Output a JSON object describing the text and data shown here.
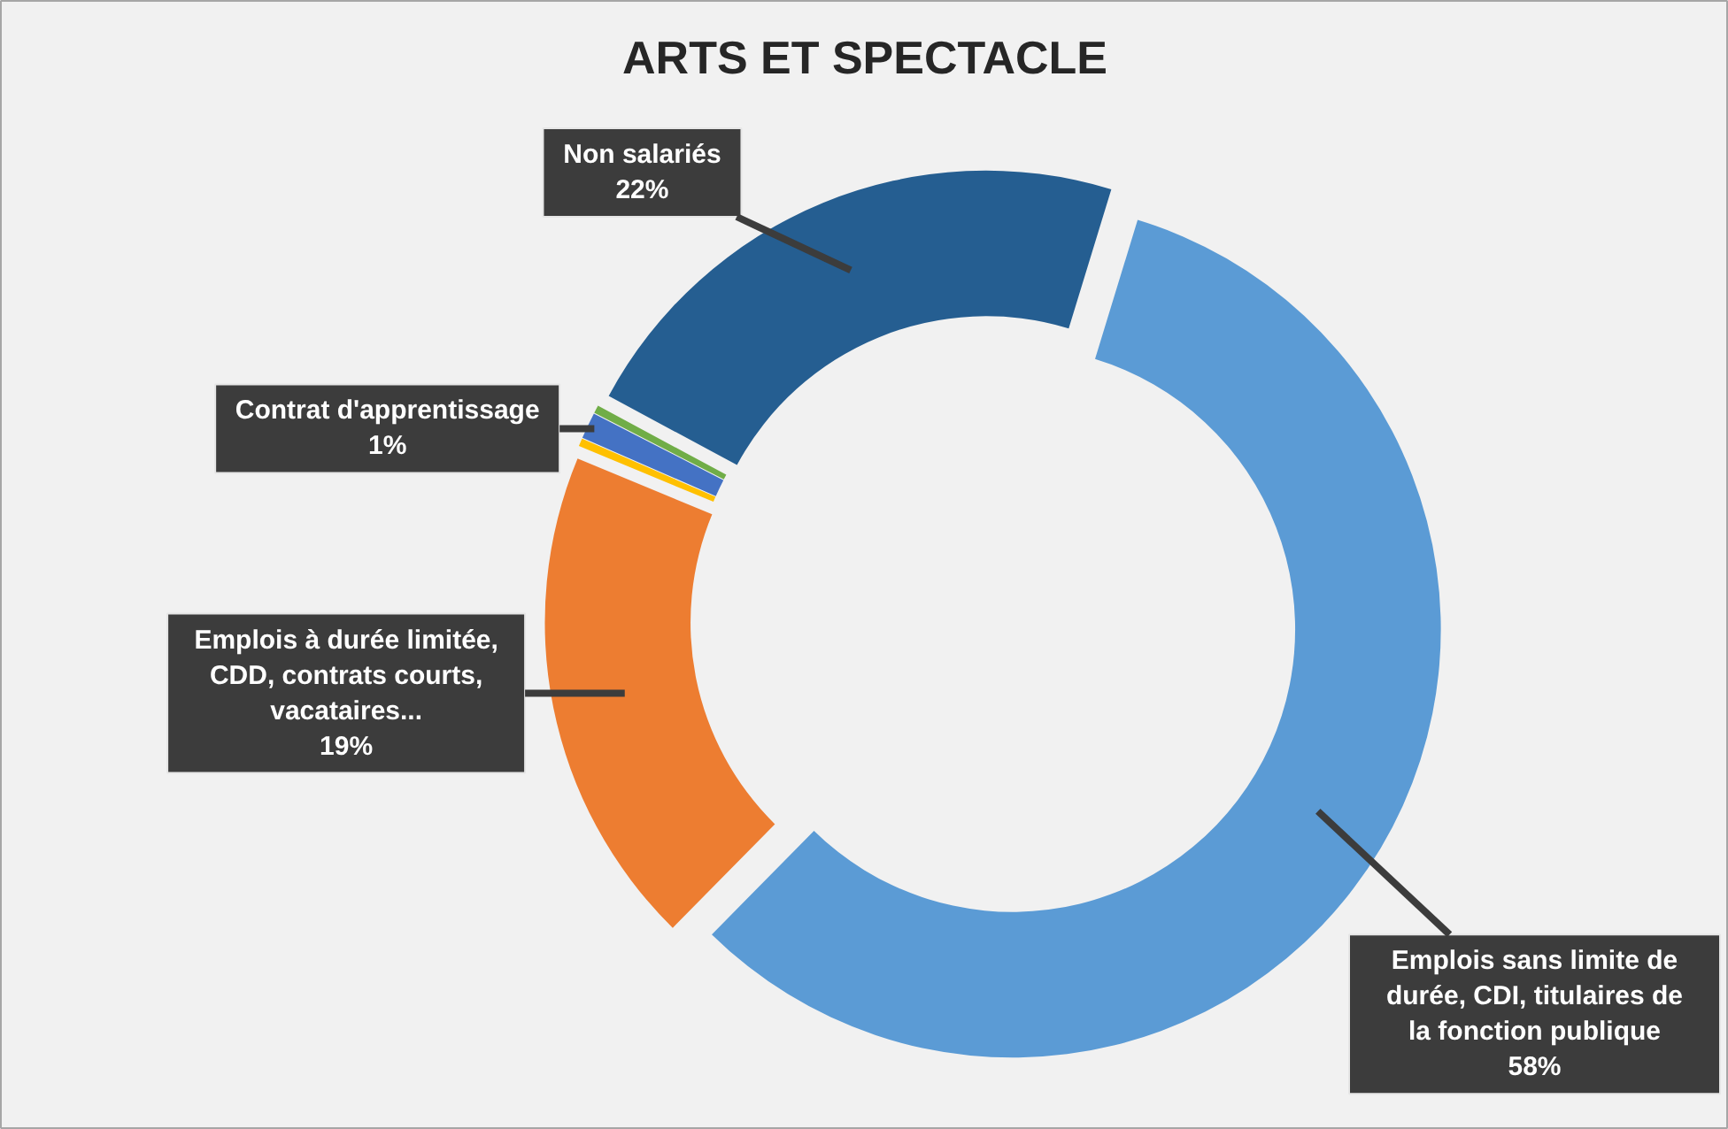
{
  "chart_data": {
    "type": "donut",
    "title": "ARTS ET SPECTACLE",
    "categories": [
      "Emplois sans limite de durée, CDI, titulaires de la fonction publique",
      "Emplois à durée limitée, CDD, contrats courts, vacataires...",
      null,
      "Contrat d'apprentissage",
      null,
      "Non salariés"
    ],
    "values": [
      58,
      19,
      0.3,
      1,
      0.3,
      22
    ],
    "colors": [
      "#5b9bd5",
      "#ed7d31",
      "#ffc000",
      "#4472c4",
      "#70ad47",
      "#255e91"
    ],
    "value_labels": [
      "58%",
      "19%",
      null,
      "1%",
      null,
      "22%"
    ]
  }
}
